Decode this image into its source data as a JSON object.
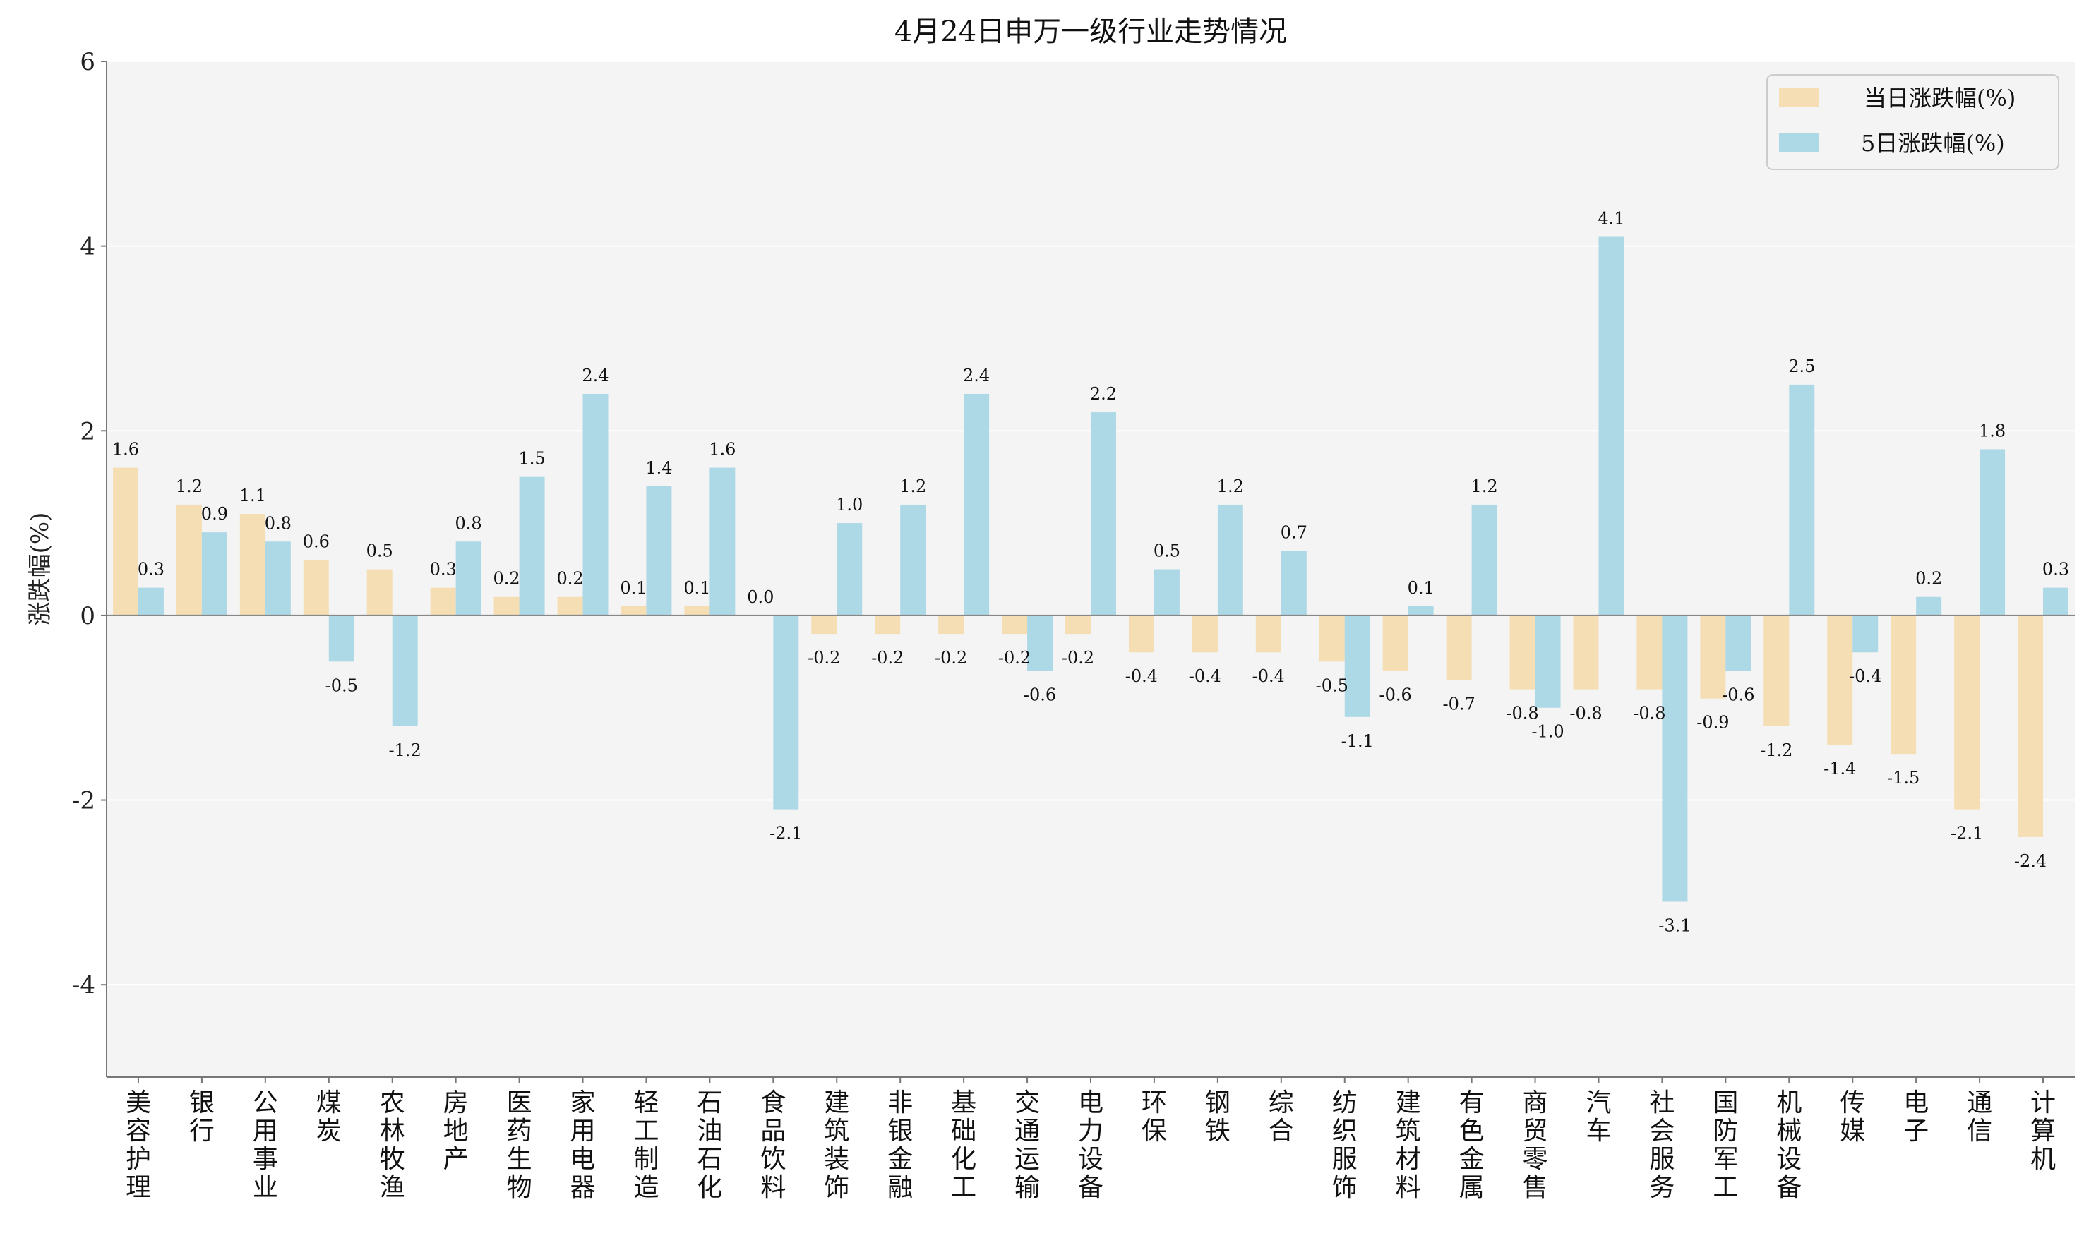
{
  "chart_data": {
    "type": "bar",
    "title": "4月24日申万一级行业走势情况",
    "xlabel": "",
    "ylabel": "涨跌幅(%)",
    "ylim": [
      -5,
      6
    ],
    "yticks": [
      -4,
      -2,
      0,
      2,
      4,
      6
    ],
    "grid": "horizontal",
    "legend": "top-right",
    "categories": [
      "美容护理",
      "银行",
      "公用事业",
      "煤炭",
      "农林牧渔",
      "房地产",
      "医药生物",
      "家用电器",
      "轻工制造",
      "石油石化",
      "食品饮料",
      "建筑装饰",
      "非银金融",
      "基础化工",
      "交通运输",
      "电力设备",
      "环保",
      "钢铁",
      "综合",
      "纺织服饰",
      "建筑材料",
      "有色金属",
      "商贸零售",
      "汽车",
      "社会服务",
      "国防军工",
      "机械设备",
      "传媒",
      "电子",
      "通信",
      "计算机"
    ],
    "series": [
      {
        "name": "当日涨跌幅(%)",
        "color": "#F5DEB3",
        "values": [
          1.6,
          1.2,
          1.1,
          0.6,
          0.5,
          0.3,
          0.2,
          0.2,
          0.1,
          0.1,
          0.0,
          -0.2,
          -0.2,
          -0.2,
          -0.2,
          -0.2,
          -0.4,
          -0.4,
          -0.4,
          -0.5,
          -0.6,
          -0.7,
          -0.8,
          -0.8,
          -0.8,
          -0.9,
          -1.2,
          -1.4,
          -1.5,
          -2.1,
          -2.4
        ]
      },
      {
        "name": "5日涨跌幅(%)",
        "color": "#ADD8E6",
        "values": [
          0.3,
          0.9,
          0.8,
          -0.5,
          -1.2,
          0.8,
          1.5,
          2.4,
          1.4,
          1.6,
          -2.1,
          1.0,
          1.2,
          2.4,
          -0.6,
          2.2,
          0.5,
          1.2,
          0.7,
          -1.1,
          0.1,
          1.2,
          -1.0,
          4.1,
          -3.1,
          -0.6,
          2.5,
          -0.4,
          0.2,
          1.8,
          0.3
        ]
      }
    ]
  }
}
